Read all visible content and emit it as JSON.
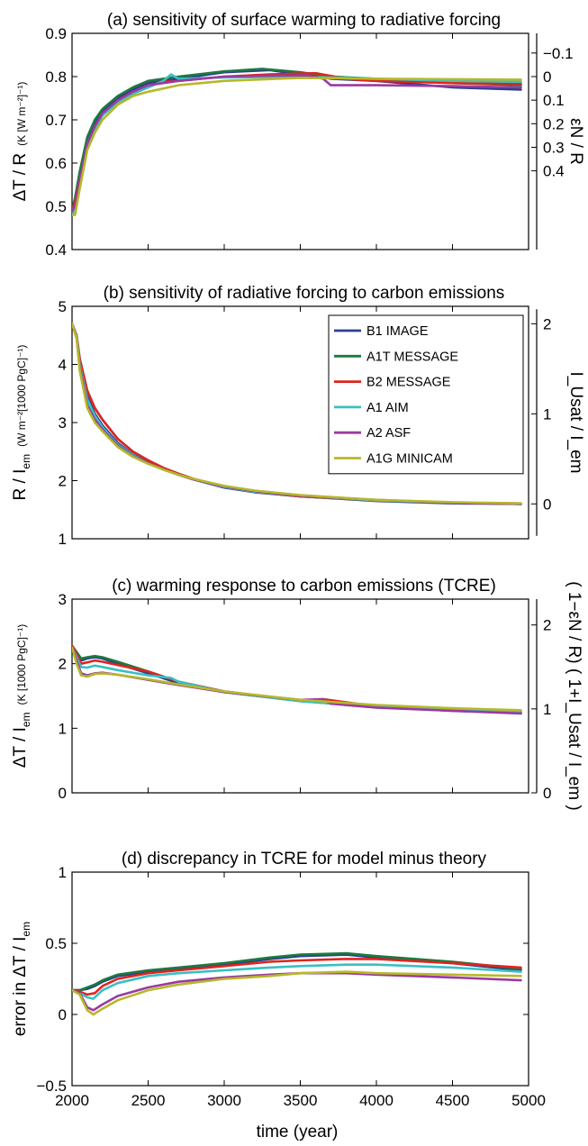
{
  "figure": {
    "xlabel": "time (year)",
    "legend": [
      "B1 IMAGE",
      "A1T MESSAGE",
      "B2 MESSAGE",
      "A1 AIM",
      "A2 ASF",
      "A1G MINICAM"
    ]
  },
  "series_colors": {
    "B1 IMAGE": "#2b3f8f",
    "A1T MESSAGE": "#1d7a3e",
    "B2 MESSAGE": "#e0241d",
    "A1 AIM": "#39bfc4",
    "A2 ASF": "#9b3aa0",
    "A1G MINICAM": "#b6b82a"
  },
  "chart_data": [
    {
      "type": "line",
      "title": "(a) sensitivity of surface warming to radiative forcing",
      "ylabel_main": "ΔT / R",
      "ylabel_units": "(K [W m⁻²]⁻¹)",
      "ylabel_right": "εN / R",
      "xlim": [
        2000,
        5000
      ],
      "ylim": [
        0.4,
        0.9
      ],
      "yticks": [
        "0.4",
        "0.5",
        "0.6",
        "0.7",
        "0.8",
        "0.9"
      ],
      "right_ticks": [
        {
          "label": "−0.1",
          "at": 0.8545
        },
        {
          "label": "0",
          "at": 0.8
        },
        {
          "label": "0.1",
          "at": 0.7455
        },
        {
          "label": "0.2",
          "at": 0.691
        },
        {
          "label": "0.3",
          "at": 0.6365
        },
        {
          "label": "0.4",
          "at": 0.582
        }
      ],
      "series": [
        {
          "name": "B1 IMAGE",
          "x": [
            2000,
            2020,
            2050,
            2100,
            2150,
            2200,
            2300,
            2400,
            2500,
            2700,
            3000,
            3300,
            3500,
            3700,
            4000,
            4500,
            4950
          ],
          "y": [
            0.48,
            0.5,
            0.56,
            0.65,
            0.69,
            0.72,
            0.75,
            0.77,
            0.785,
            0.795,
            0.81,
            0.815,
            0.805,
            0.795,
            0.79,
            0.775,
            0.77
          ]
        },
        {
          "name": "A1T MESSAGE",
          "x": [
            2000,
            2020,
            2050,
            2100,
            2150,
            2200,
            2300,
            2400,
            2500,
            2700,
            3000,
            3250,
            3500,
            3700,
            4000,
            4500,
            4950
          ],
          "y": [
            0.49,
            0.52,
            0.58,
            0.66,
            0.7,
            0.725,
            0.755,
            0.775,
            0.79,
            0.8,
            0.812,
            0.818,
            0.81,
            0.8,
            0.795,
            0.785,
            0.78
          ]
        },
        {
          "name": "B2 MESSAGE",
          "x": [
            2000,
            2020,
            2050,
            2100,
            2150,
            2200,
            2300,
            2400,
            2500,
            2580,
            2700,
            3000,
            3300,
            3600,
            3800,
            4000,
            4500,
            4950
          ],
          "y": [
            0.49,
            0.51,
            0.56,
            0.64,
            0.68,
            0.71,
            0.745,
            0.765,
            0.775,
            0.788,
            0.79,
            0.8,
            0.805,
            0.808,
            0.795,
            0.79,
            0.785,
            0.783
          ]
        },
        {
          "name": "A1 AIM",
          "x": [
            2000,
            2020,
            2050,
            2100,
            2150,
            2200,
            2300,
            2400,
            2500,
            2600,
            2650,
            2700,
            3000,
            3500,
            4000,
            4500,
            4950
          ],
          "y": [
            0.48,
            0.49,
            0.55,
            0.64,
            0.68,
            0.71,
            0.74,
            0.76,
            0.775,
            0.79,
            0.805,
            0.795,
            0.798,
            0.8,
            0.795,
            0.79,
            0.788
          ]
        },
        {
          "name": "A2 ASF",
          "x": [
            2000,
            2020,
            2050,
            2100,
            2150,
            2200,
            2300,
            2400,
            2500,
            2700,
            3000,
            3300,
            3550,
            3650,
            3700,
            4000,
            4500,
            4950
          ],
          "y": [
            0.49,
            0.5,
            0.56,
            0.645,
            0.685,
            0.715,
            0.745,
            0.765,
            0.78,
            0.79,
            0.8,
            0.802,
            0.803,
            0.795,
            0.78,
            0.78,
            0.778,
            0.775
          ]
        },
        {
          "name": "A1G MINICAM",
          "x": [
            2000,
            2020,
            2050,
            2100,
            2150,
            2200,
            2300,
            2400,
            2500,
            2700,
            3000,
            3500,
            4000,
            4500,
            4950
          ],
          "y": [
            0.48,
            0.48,
            0.54,
            0.63,
            0.67,
            0.7,
            0.735,
            0.755,
            0.765,
            0.78,
            0.79,
            0.797,
            0.795,
            0.794,
            0.793
          ]
        }
      ]
    },
    {
      "type": "line",
      "title": "(b) sensitivity of radiative forcing to carbon emissions",
      "ylabel_main": "R / I",
      "ylabel_sub": "em",
      "ylabel_units": "(W m⁻²[1000 PgC]⁻¹)",
      "ylabel_right": "I_Usat / I_em",
      "xlim": [
        2000,
        5000
      ],
      "ylim": [
        1,
        5
      ],
      "yticks": [
        "1",
        "2",
        "3",
        "4",
        "5"
      ],
      "right_ticks": [
        {
          "label": "0",
          "at": 1.6
        },
        {
          "label": "1",
          "at": 3.15
        },
        {
          "label": "2",
          "at": 4.7
        }
      ],
      "series": [
        {
          "name": "B1 IMAGE",
          "x": [
            2000,
            2030,
            2050,
            2100,
            2150,
            2200,
            2300,
            2400,
            2500,
            2600,
            2700,
            2800,
            3000,
            3200,
            3500,
            4000,
            4500,
            4950
          ],
          "y": [
            4.7,
            4.5,
            4.05,
            3.45,
            3.15,
            2.95,
            2.65,
            2.45,
            2.32,
            2.2,
            2.1,
            2.02,
            1.88,
            1.8,
            1.73,
            1.65,
            1.61,
            1.6
          ]
        },
        {
          "name": "A1T MESSAGE",
          "x": [
            2000,
            2030,
            2050,
            2100,
            2150,
            2200,
            2300,
            2400,
            2500,
            2600,
            2700,
            2800,
            3000,
            3200,
            3500,
            4000,
            4500,
            4950
          ],
          "y": [
            4.7,
            4.5,
            4.1,
            3.55,
            3.25,
            3.05,
            2.72,
            2.5,
            2.35,
            2.22,
            2.12,
            2.03,
            1.9,
            1.81,
            1.73,
            1.66,
            1.62,
            1.6
          ]
        },
        {
          "name": "B2 MESSAGE",
          "x": [
            2000,
            2030,
            2050,
            2100,
            2150,
            2200,
            2300,
            2400,
            2500,
            2600,
            2700,
            2800,
            3000,
            3200,
            3500,
            4000,
            4500,
            4950
          ],
          "y": [
            4.7,
            4.5,
            4.1,
            3.55,
            3.25,
            3.05,
            2.72,
            2.5,
            2.35,
            2.22,
            2.12,
            2.03,
            1.9,
            1.81,
            1.73,
            1.66,
            1.62,
            1.6
          ]
        },
        {
          "name": "A1 AIM",
          "x": [
            2000,
            2030,
            2050,
            2100,
            2150,
            2200,
            2300,
            2400,
            2500,
            2600,
            2700,
            2800,
            3000,
            3200,
            3500,
            4000,
            4500,
            4950
          ],
          "y": [
            4.7,
            4.48,
            4.0,
            3.4,
            3.12,
            2.92,
            2.62,
            2.44,
            2.3,
            2.19,
            2.1,
            2.02,
            1.89,
            1.81,
            1.74,
            1.66,
            1.62,
            1.61
          ]
        },
        {
          "name": "A2 ASF",
          "x": [
            2000,
            2030,
            2050,
            2100,
            2150,
            2200,
            2300,
            2400,
            2500,
            2600,
            2700,
            2800,
            3000,
            3200,
            3500,
            4000,
            4500,
            4950
          ],
          "y": [
            4.7,
            4.45,
            3.95,
            3.3,
            3.05,
            2.88,
            2.6,
            2.42,
            2.3,
            2.19,
            2.1,
            2.02,
            1.9,
            1.82,
            1.74,
            1.67,
            1.62,
            1.6
          ]
        },
        {
          "name": "A1G MINICAM",
          "x": [
            2000,
            2030,
            2050,
            2100,
            2150,
            2200,
            2300,
            2400,
            2500,
            2600,
            2700,
            2800,
            3000,
            3200,
            3500,
            4000,
            4500,
            4950
          ],
          "y": [
            4.7,
            4.45,
            3.9,
            3.25,
            3.0,
            2.85,
            2.58,
            2.41,
            2.29,
            2.19,
            2.1,
            2.03,
            1.91,
            1.83,
            1.75,
            1.67,
            1.63,
            1.61
          ]
        }
      ]
    },
    {
      "type": "line",
      "title": "(c) warming response to carbon emissions (TCRE)",
      "ylabel_main": "ΔT / I",
      "ylabel_sub": "em",
      "ylabel_units": "(K [1000 PgC]⁻¹)",
      "ylabel_right": "( 1−εN / R) ( 1+I_Usat / I_em )",
      "xlim": [
        2000,
        5000
      ],
      "ylim": [
        0,
        3
      ],
      "yticks": [
        "0",
        "1",
        "2",
        "3"
      ],
      "right_ticks": [
        {
          "label": "0",
          "at": 0
        },
        {
          "label": "1",
          "at": 1.3
        },
        {
          "label": "2",
          "at": 2.6
        }
      ],
      "series": [
        {
          "name": "B1 IMAGE",
          "x": [
            2000,
            2030,
            2060,
            2100,
            2150,
            2200,
            2300,
            2500,
            2700,
            3000,
            3500,
            4000,
            4500,
            4950
          ],
          "y": [
            2.25,
            2.15,
            2.05,
            2.08,
            2.1,
            2.08,
            2.0,
            1.85,
            1.7,
            1.56,
            1.42,
            1.33,
            1.27,
            1.24
          ]
        },
        {
          "name": "A1T MESSAGE",
          "x": [
            2000,
            2030,
            2060,
            2100,
            2150,
            2200,
            2300,
            2500,
            2700,
            3000,
            3500,
            4000,
            4500,
            4950
          ],
          "y": [
            2.28,
            2.18,
            2.08,
            2.1,
            2.12,
            2.1,
            2.03,
            1.88,
            1.72,
            1.57,
            1.43,
            1.34,
            1.28,
            1.25
          ]
        },
        {
          "name": "B2 MESSAGE",
          "x": [
            2000,
            2030,
            2060,
            2100,
            2150,
            2200,
            2300,
            2500,
            2600,
            2700,
            3000,
            3500,
            3650,
            4000,
            4500,
            4950
          ],
          "y": [
            2.28,
            2.15,
            2.0,
            2.02,
            2.05,
            2.03,
            1.98,
            1.88,
            1.8,
            1.72,
            1.57,
            1.43,
            1.45,
            1.34,
            1.28,
            1.25
          ]
        },
        {
          "name": "A1 AIM",
          "x": [
            2000,
            2030,
            2060,
            2100,
            2150,
            2200,
            2300,
            2500,
            2650,
            2700,
            3000,
            3500,
            4000,
            4500,
            4950
          ],
          "y": [
            2.25,
            2.1,
            1.95,
            1.94,
            1.97,
            1.95,
            1.9,
            1.82,
            1.78,
            1.72,
            1.56,
            1.42,
            1.33,
            1.28,
            1.26
          ]
        },
        {
          "name": "A2 ASF",
          "x": [
            2000,
            2030,
            2060,
            2100,
            2150,
            2200,
            2300,
            2500,
            2700,
            3000,
            3500,
            3650,
            3700,
            4000,
            4500,
            4950
          ],
          "y": [
            2.25,
            2.05,
            1.85,
            1.82,
            1.85,
            1.86,
            1.83,
            1.75,
            1.67,
            1.56,
            1.44,
            1.45,
            1.38,
            1.32,
            1.27,
            1.23
          ]
        },
        {
          "name": "A1G MINICAM",
          "x": [
            2000,
            2030,
            2060,
            2100,
            2150,
            2200,
            2300,
            2500,
            2700,
            3000,
            3500,
            4000,
            4500,
            4950
          ],
          "y": [
            2.25,
            2.0,
            1.82,
            1.8,
            1.84,
            1.85,
            1.83,
            1.76,
            1.68,
            1.57,
            1.44,
            1.36,
            1.31,
            1.28
          ]
        }
      ]
    },
    {
      "type": "line",
      "title": "(d) discrepancy in TCRE for model minus theory",
      "ylabel_main": "error in  ΔT / I",
      "ylabel_sub": "em",
      "xlim": [
        2000,
        5000
      ],
      "ylim": [
        -0.5,
        1
      ],
      "yticks": [
        "−0.5",
        "0",
        "0.5",
        "1"
      ],
      "xticks": [
        "2000",
        "2500",
        "3000",
        "3500",
        "4000",
        "4500",
        "5000"
      ],
      "series": [
        {
          "name": "B1 IMAGE",
          "x": [
            2000,
            2050,
            2100,
            2150,
            2200,
            2300,
            2500,
            2700,
            3000,
            3300,
            3500,
            3800,
            4000,
            4500,
            4950
          ],
          "y": [
            0.17,
            0.17,
            0.18,
            0.2,
            0.23,
            0.27,
            0.3,
            0.32,
            0.35,
            0.39,
            0.41,
            0.42,
            0.4,
            0.36,
            0.31
          ]
        },
        {
          "name": "A1T MESSAGE",
          "x": [
            2000,
            2050,
            2100,
            2150,
            2200,
            2300,
            2500,
            2700,
            3000,
            3300,
            3500,
            3800,
            4000,
            4500,
            4950
          ],
          "y": [
            0.17,
            0.17,
            0.19,
            0.21,
            0.24,
            0.28,
            0.31,
            0.33,
            0.36,
            0.4,
            0.42,
            0.43,
            0.41,
            0.37,
            0.32
          ]
        },
        {
          "name": "B2 MESSAGE",
          "x": [
            2000,
            2050,
            2100,
            2150,
            2200,
            2300,
            2500,
            2700,
            3000,
            3300,
            3500,
            3800,
            4000,
            4500,
            4950
          ],
          "y": [
            0.17,
            0.16,
            0.14,
            0.15,
            0.2,
            0.25,
            0.29,
            0.31,
            0.34,
            0.37,
            0.38,
            0.39,
            0.39,
            0.36,
            0.33
          ]
        },
        {
          "name": "A1 AIM",
          "x": [
            2000,
            2050,
            2100,
            2140,
            2200,
            2300,
            2500,
            2700,
            3000,
            3300,
            3500,
            3800,
            4000,
            4500,
            4950
          ],
          "y": [
            0.17,
            0.15,
            0.12,
            0.11,
            0.17,
            0.22,
            0.27,
            0.29,
            0.31,
            0.33,
            0.34,
            0.35,
            0.35,
            0.33,
            0.3
          ]
        },
        {
          "name": "A2 ASF",
          "x": [
            2000,
            2050,
            2100,
            2140,
            2200,
            2300,
            2500,
            2700,
            3000,
            3300,
            3500,
            3800,
            4000,
            4500,
            4950
          ],
          "y": [
            0.17,
            0.15,
            0.05,
            0.03,
            0.07,
            0.13,
            0.19,
            0.23,
            0.26,
            0.28,
            0.29,
            0.29,
            0.28,
            0.26,
            0.24
          ]
        },
        {
          "name": "A1G MINICAM",
          "x": [
            2000,
            2050,
            2100,
            2140,
            2200,
            2300,
            2500,
            2700,
            3000,
            3300,
            3500,
            3800,
            4000,
            4500,
            4950
          ],
          "y": [
            0.17,
            0.14,
            0.03,
            0.0,
            0.04,
            0.1,
            0.17,
            0.21,
            0.25,
            0.27,
            0.29,
            0.3,
            0.29,
            0.28,
            0.27
          ]
        }
      ]
    }
  ]
}
